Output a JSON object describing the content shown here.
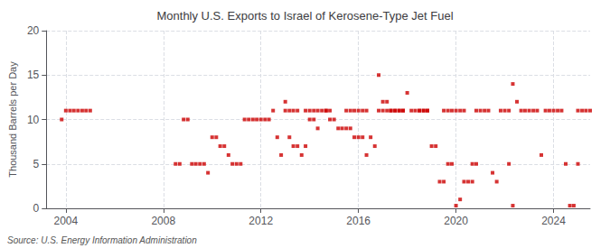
{
  "chart_data": {
    "type": "scatter",
    "title": "Monthly U.S. Exports to Israel of Kerosene-Type Jet Fuel",
    "ylabel": "Thousand Barrels per Day",
    "source": "Source: U.S. Energy Information Administration",
    "color": "#cc0000",
    "marker": "square",
    "grid": true,
    "xlim": [
      2003.2,
      2025.5
    ],
    "xticks": [
      2004,
      2008,
      2012,
      2016,
      2020,
      2024
    ],
    "ylim": [
      0,
      20
    ],
    "yticks": [
      0,
      5,
      10,
      15,
      20
    ],
    "x": [
      2003.83,
      2004.0,
      2004.17,
      2004.33,
      2004.5,
      2004.67,
      2004.83,
      2005.0,
      2008.5,
      2008.67,
      2008.83,
      2009.0,
      2009.17,
      2009.33,
      2009.5,
      2009.67,
      2009.83,
      2010.0,
      2010.17,
      2010.33,
      2010.5,
      2010.67,
      2010.83,
      2011.0,
      2011.17,
      2011.33,
      2011.5,
      2011.67,
      2011.83,
      2012.0,
      2012.17,
      2012.33,
      2012.5,
      2012.67,
      2012.83,
      2013.0,
      2013.17,
      2013.33,
      2013.5,
      2013.67,
      2013.83,
      2014.0,
      2014.17,
      2014.33,
      2014.5,
      2014.67,
      2014.83,
      2015.0,
      2015.17,
      2015.33,
      2015.5,
      2015.67,
      2015.83,
      2016.0,
      2016.17,
      2016.33,
      2016.5,
      2016.67,
      2016.83,
      2017.0,
      2017.17,
      2017.33,
      2017.5,
      2017.67,
      2017.83,
      2018.0,
      2018.17,
      2018.33,
      2018.5,
      2018.67,
      2018.83,
      2019.0,
      2019.17,
      2019.33,
      2019.5,
      2019.67,
      2019.83,
      2020.0,
      2020.17,
      2020.33,
      2020.5,
      2020.67,
      2020.83,
      2021.0,
      2021.17,
      2021.33,
      2021.5,
      2021.67,
      2021.83,
      2022.0,
      2022.17,
      2022.33,
      2022.5,
      2022.67,
      2022.83,
      2023.0,
      2023.17,
      2023.33,
      2023.5,
      2023.67,
      2023.83,
      2024.0,
      2024.17,
      2024.33,
      2024.5,
      2024.67,
      2024.83,
      2025.0,
      2025.17,
      2025.33,
      2025.5,
      2025.0,
      2022.17,
      2022.33,
      2020.67,
      2020.83,
      2019.5,
      2019.67,
      2019.83,
      2020.0,
      2020.17,
      2020.33,
      2018.5,
      2018.67,
      2018.83,
      2017.5,
      2017.67,
      2017.83,
      2016.83,
      2017.0,
      2017.17,
      2017.33,
      2015.83,
      2016.0,
      2016.17,
      2016.33,
      2015.5,
      2015.67,
      2014.67,
      2014.83,
      2013.83,
      2014.0,
      2014.17,
      2014.33,
      2013.0,
      2013.17,
      2013.33,
      2013.5
    ],
    "values": [
      10,
      11,
      11,
      11,
      11,
      11,
      11,
      11,
      5,
      5,
      10,
      10,
      5,
      5,
      5,
      5,
      4,
      8,
      8,
      7,
      7,
      6,
      5,
      5,
      5,
      10,
      10,
      10,
      10,
      10,
      10,
      10,
      11,
      8,
      6,
      12,
      8,
      7,
      7,
      6,
      7,
      10,
      10,
      9,
      11,
      11,
      10,
      10,
      9,
      9,
      9,
      9,
      8,
      8,
      8,
      6,
      8,
      7,
      15,
      12,
      12,
      11,
      11,
      11,
      11,
      13,
      11,
      11,
      11,
      11,
      11,
      7,
      7,
      3,
      3,
      5,
      5,
      0.3,
      1,
      3,
      3,
      3,
      11,
      11,
      11,
      11,
      4,
      3,
      11,
      11,
      11,
      14,
      12,
      11,
      11,
      11,
      11,
      11,
      6,
      11,
      11,
      11,
      11,
      11,
      5,
      0.3,
      0.3,
      11,
      11,
      11,
      11,
      5,
      5,
      0.3,
      5,
      5,
      11,
      11,
      11,
      11,
      11,
      11,
      11,
      11,
      11,
      11,
      11,
      11,
      11,
      11,
      11,
      11,
      11,
      11,
      11,
      11,
      11,
      11,
      11,
      11,
      11,
      11,
      11,
      11,
      11,
      11,
      11,
      11
    ]
  }
}
